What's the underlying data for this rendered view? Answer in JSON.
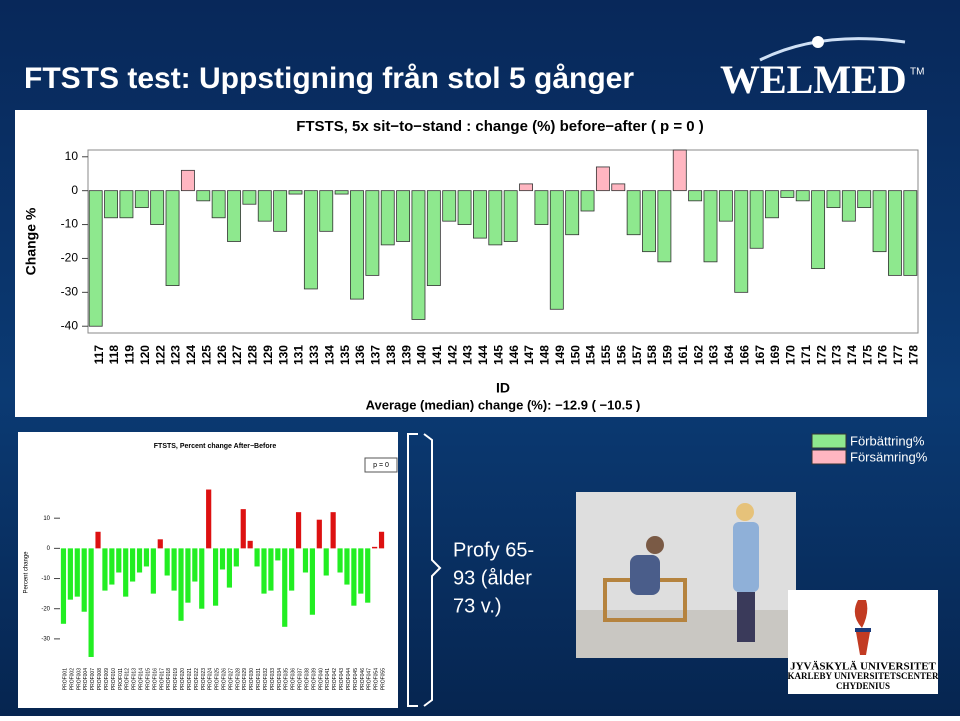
{
  "slide": {
    "title": "FTSTS test: Uppstigning från stol 5 gånger",
    "logo": "WELMED",
    "logo_tm": "TM",
    "legend": [
      {
        "label": "Förbättring%",
        "color": "#8ee88e"
      },
      {
        "label": "Försämring%",
        "color": "#ffb6c1"
      }
    ],
    "caption": [
      "Profy 65-",
      "93 (ålder",
      "73 v.)"
    ],
    "university": [
      "JYVÄSKYLÄ UNIVERSITET",
      "KARLEBY UNIVERSITETSCENTER",
      "CHYDENIUS"
    ]
  },
  "chart_data": [
    {
      "type": "bar",
      "title": "FTSTS, 5x sit−to−stand : change (%) before−after ( p =  0 )",
      "xlabel": "ID",
      "ylabel": "Change %",
      "footer": "Average (median) change (%): −12.9 ( −10.5 )",
      "categories": [
        "117",
        "118",
        "119",
        "120",
        "122",
        "123",
        "124",
        "125",
        "126",
        "127",
        "128",
        "129",
        "130",
        "131",
        "133",
        "134",
        "135",
        "136",
        "137",
        "138",
        "139",
        "140",
        "141",
        "142",
        "143",
        "144",
        "145",
        "146",
        "147",
        "148",
        "149",
        "150",
        "154",
        "155",
        "156",
        "157",
        "158",
        "159",
        "161",
        "162",
        "163",
        "164",
        "166",
        "167",
        "169",
        "170",
        "171",
        "172",
        "173",
        "174",
        "175",
        "176",
        "177",
        "178"
      ],
      "values": [
        -40,
        -8,
        -8,
        -5,
        -10,
        -28,
        6,
        -3,
        -8,
        -15,
        -4,
        -9,
        -12,
        -1,
        -29,
        -12,
        -1,
        -32,
        -25,
        -16,
        -15,
        -38,
        -28,
        -9,
        -10,
        -14,
        -16,
        -15,
        2,
        -10,
        -35,
        -13,
        -6,
        7,
        2,
        -13,
        -18,
        -21,
        12,
        -3,
        -21,
        -9,
        -30,
        -17,
        -8,
        -2,
        -3,
        -23,
        -5,
        -9,
        -5,
        -18,
        -25,
        -25
      ],
      "colors": {
        "positive": "#ffb6c1",
        "negative": "#8ee88e"
      },
      "ylim": [
        -42,
        12
      ],
      "yticks": [
        -40,
        -30,
        -20,
        -10,
        0,
        10
      ]
    },
    {
      "type": "bar",
      "title": "FTSTS, Percent change After−Before",
      "ylabel": "Percent change",
      "annotation": "p = 0",
      "categories": [
        "PROF001",
        "PROF002",
        "PROF003",
        "PROF004",
        "PROF007",
        "PROF008",
        "PROF009",
        "PROF010",
        "PROF011",
        "PROF012",
        "PROF013",
        "PROF014",
        "PROF015",
        "PROF016",
        "PROF017",
        "PROF018",
        "PROF019",
        "PROF020",
        "PROF021",
        "PROF022",
        "PROF023",
        "PROF024",
        "PROF025",
        "PROF026",
        "PROF027",
        "PROF028",
        "PROF029",
        "PROF030",
        "PROF031",
        "PROF032",
        "PROF033",
        "PROF034",
        "PROF035",
        "PROF036",
        "PROF037",
        "PROF038",
        "PROF039",
        "PROF040",
        "PROF041",
        "PROF042",
        "PROF043",
        "PROF044",
        "PROF045",
        "PROF046",
        "PROF047",
        "PROF054",
        "PROF055"
      ],
      "values": [
        -25,
        -17,
        -16,
        -21,
        -36,
        5.5,
        -14,
        -12,
        -8,
        -16,
        -11,
        -8,
        -6,
        -15,
        3,
        -9,
        -14,
        -24,
        -18,
        -11,
        -20,
        19.5,
        -19,
        -7,
        -13,
        -6,
        13,
        2.5,
        -6,
        -15,
        -14,
        -4,
        -26,
        -14,
        12,
        -8,
        -22,
        9.5,
        -9,
        12,
        -8,
        -12,
        -19,
        -15,
        -18,
        0.5,
        5.5
      ],
      "colors": {
        "positive": "#dd1111",
        "negative": "#22ee22"
      },
      "ylim": [
        -37,
        21
      ],
      "yticks": [
        -30,
        -20,
        -10,
        0,
        10
      ]
    }
  ]
}
